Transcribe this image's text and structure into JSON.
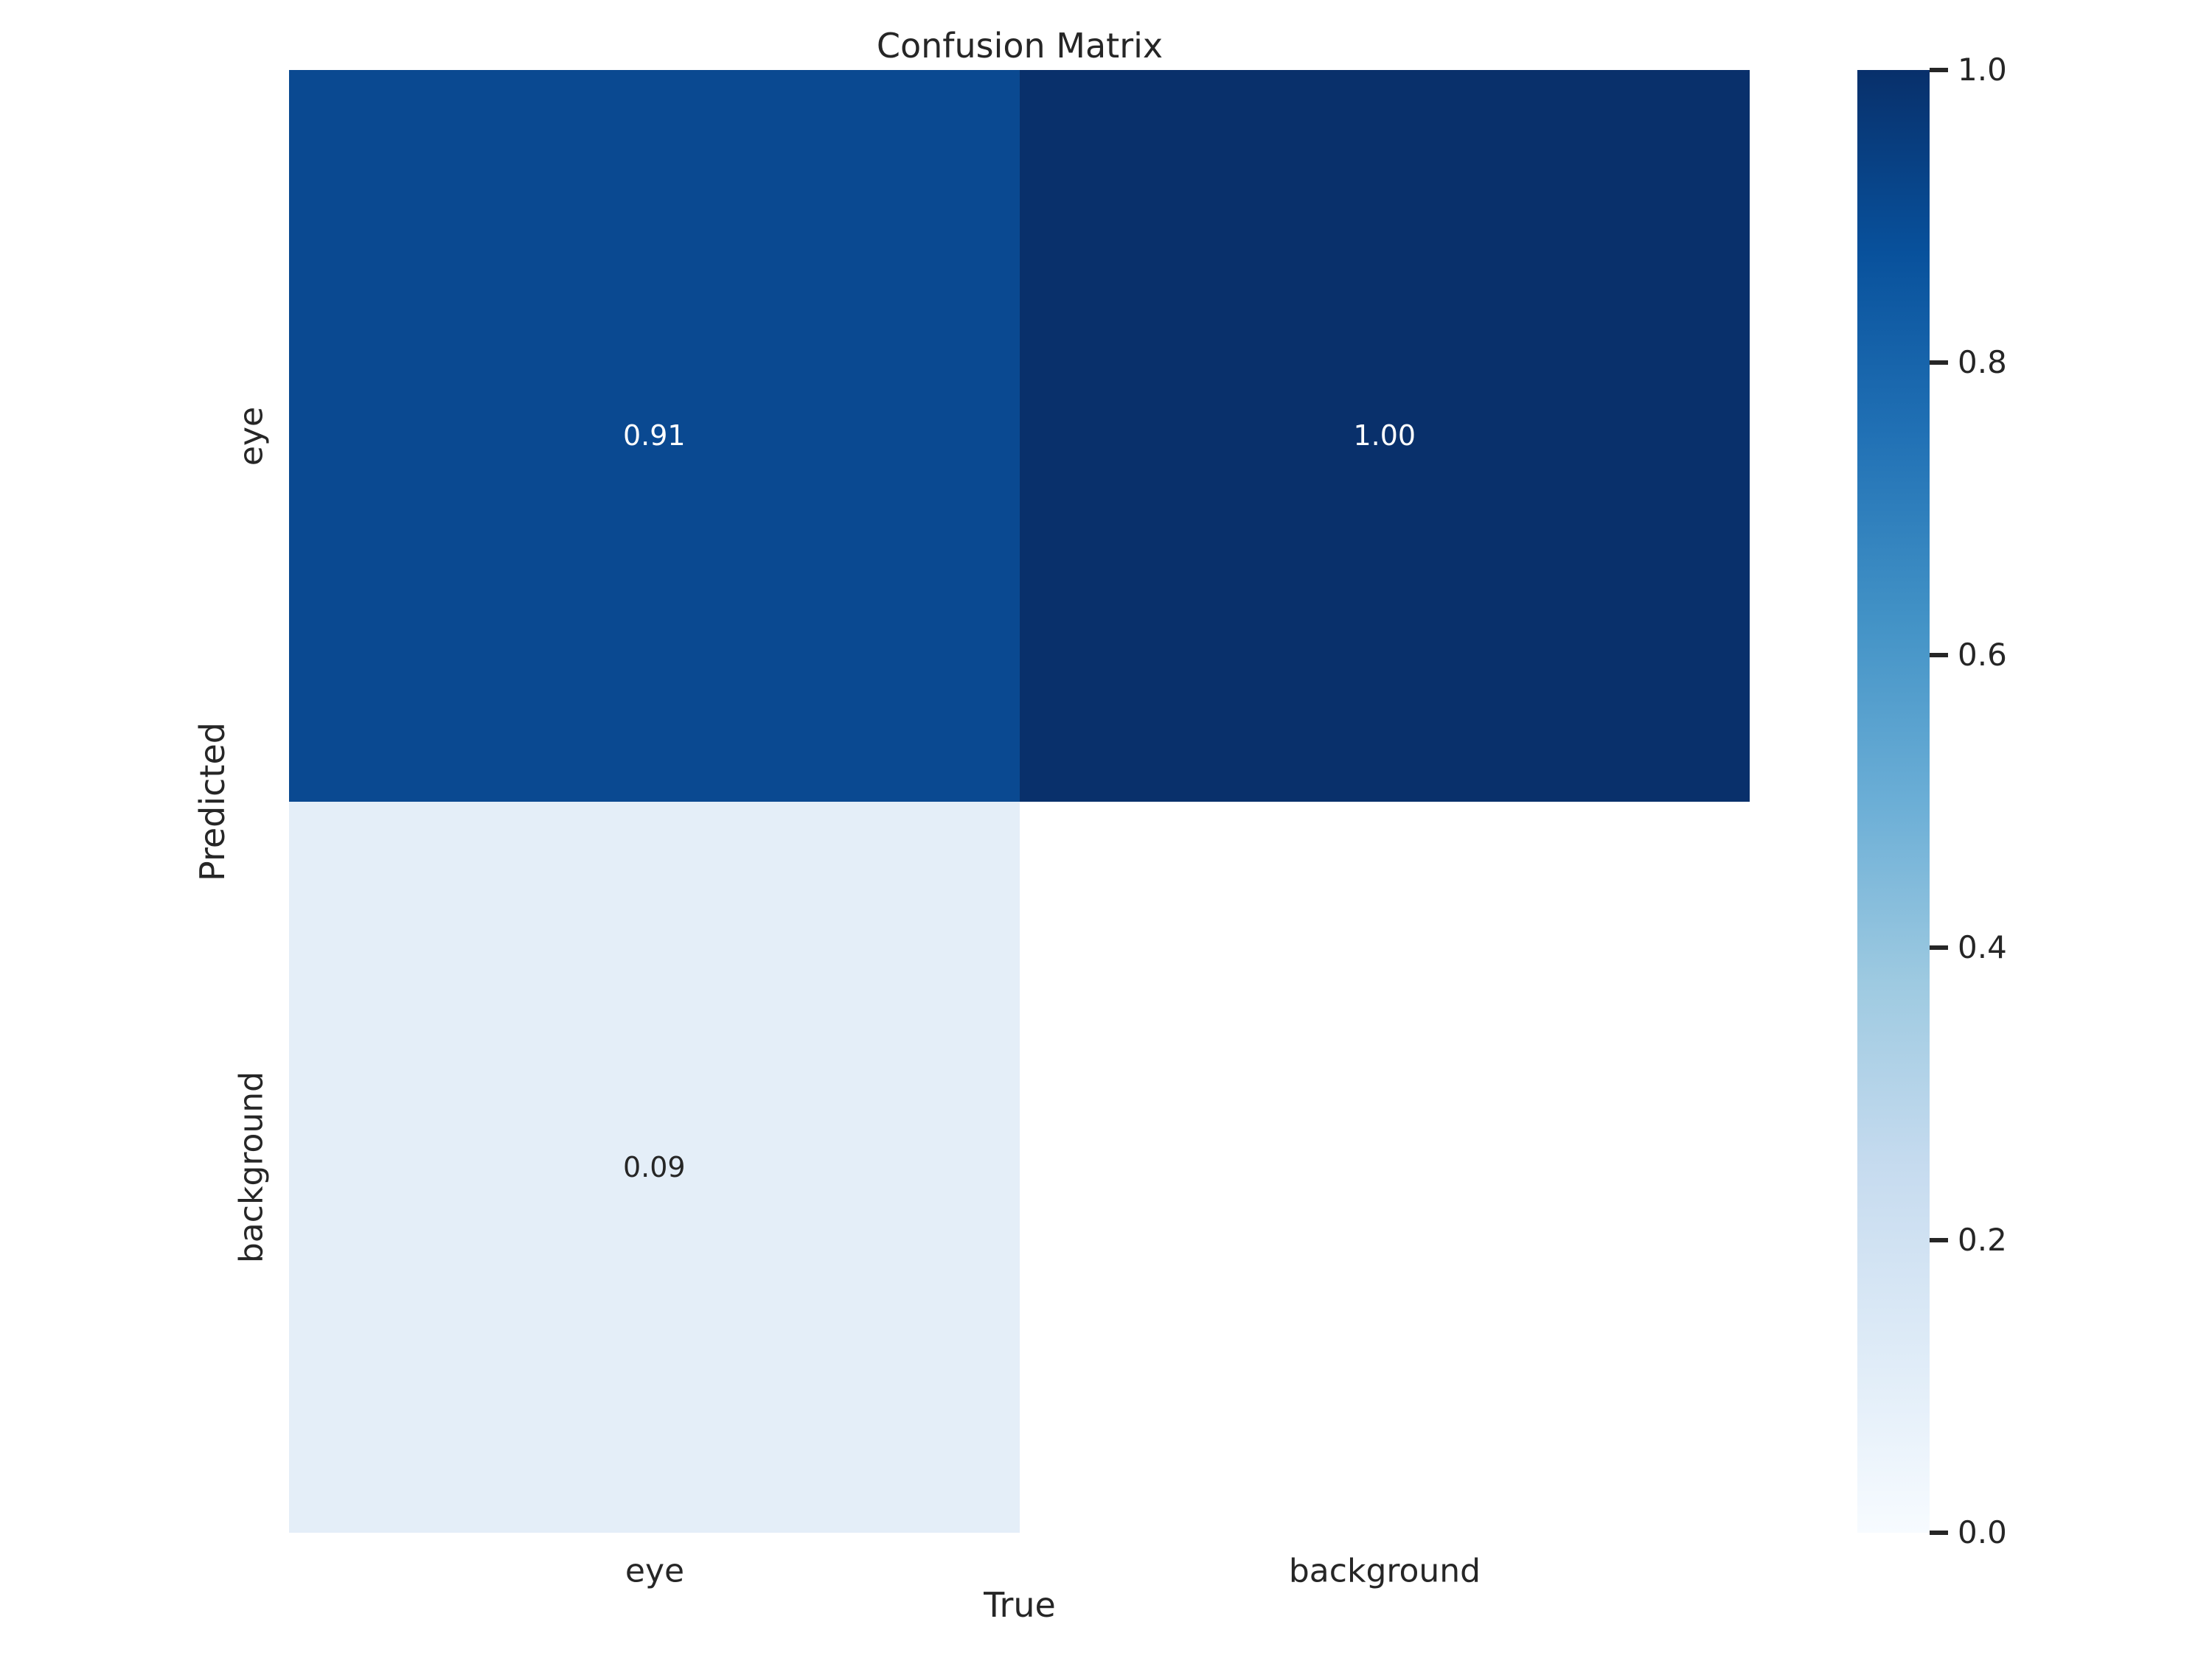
{
  "figure": {
    "background_color": "#FFFFFF",
    "text_color": "#262626"
  },
  "chart_data": {
    "type": "heatmap",
    "title": "Confusion Matrix",
    "xlabel": "True",
    "ylabel": "Predicted",
    "x_ticklabels": [
      "eye",
      "background"
    ],
    "y_ticklabels": [
      "eye",
      "background"
    ],
    "matrix": [
      [
        0.91,
        1.0
      ],
      [
        0.09,
        null
      ]
    ],
    "annotations": [
      [
        "0.91",
        "1.00"
      ],
      [
        "0.09",
        ""
      ]
    ],
    "cell_colors": [
      [
        "#0A4991",
        "#09306B"
      ],
      [
        "#E4EEF8",
        "#FFFFFF"
      ]
    ],
    "annotation_text_colors": [
      [
        "#FFFFFF",
        "#FFFFFF"
      ],
      [
        "#262626",
        "#262626"
      ]
    ],
    "value_range": [
      0,
      1
    ],
    "colormap": "Blues",
    "grid": false,
    "legend": false,
    "colorbar": {
      "position": "right",
      "tick_labels": [
        "1.0",
        "0.8",
        "0.6",
        "0.4",
        "0.2",
        "0.0"
      ],
      "tick_color": "#262626",
      "gradient_stops": [
        {
          "pos": 0,
          "color": "#F7FBFF"
        },
        {
          "pos": 12.5,
          "color": "#DEEBF7"
        },
        {
          "pos": 25,
          "color": "#C6DBEF"
        },
        {
          "pos": 37.5,
          "color": "#9ECAE1"
        },
        {
          "pos": 50,
          "color": "#6BAED6"
        },
        {
          "pos": 62.5,
          "color": "#4292C6"
        },
        {
          "pos": 75,
          "color": "#2171B5"
        },
        {
          "pos": 87.5,
          "color": "#08519C"
        },
        {
          "pos": 100,
          "color": "#08306B"
        }
      ]
    }
  }
}
